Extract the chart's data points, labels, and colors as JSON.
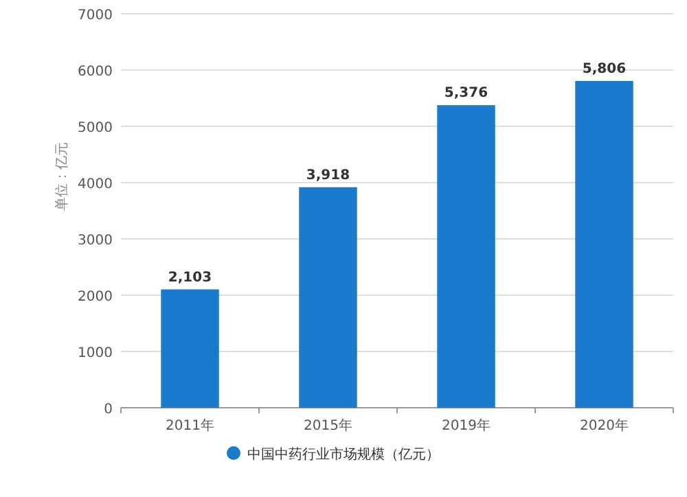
{
  "chart_data": {
    "type": "bar",
    "ylabel": "单位：亿元",
    "categories": [
      "2011年",
      "2015年",
      "2019年",
      "2020年"
    ],
    "series": [
      {
        "name": "中国中药行业市场规模（亿元）",
        "color": "#1a7acb",
        "values": [
          2103,
          3918,
          5376,
          5806
        ],
        "value_labels": [
          "2,103",
          "3,918",
          "5,376",
          "5,806"
        ]
      }
    ],
    "ylim": [
      0,
      7000
    ],
    "yticks": [
      0,
      1000,
      2000,
      3000,
      4000,
      5000,
      6000,
      7000
    ],
    "grid": "y",
    "legend": "bottom"
  }
}
